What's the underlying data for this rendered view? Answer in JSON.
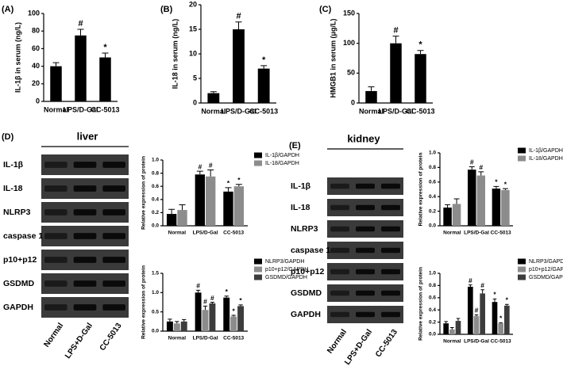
{
  "chart_data": [
    {
      "type": "bar",
      "panel": "(A)",
      "ylabel": "IL-1β in serum (ng/L)",
      "categories": [
        "Normal",
        "LPS/D-Gal",
        "CC-5013"
      ],
      "values": [
        40,
        75,
        50
      ],
      "errors": [
        4,
        7,
        5
      ],
      "color": "#000000",
      "ylim": [
        0,
        100
      ],
      "yticks": [
        0,
        20,
        40,
        60,
        80,
        100
      ],
      "annotations": [
        {
          "text": "#",
          "x": "LPS/D-Gal"
        },
        {
          "text": "*",
          "x": "CC-5013"
        }
      ]
    },
    {
      "type": "bar",
      "panel": "(B)",
      "ylabel": "IL-18 in serum (ng/L)",
      "categories": [
        "Normal",
        "LPS/D-Gal",
        "CC-5013"
      ],
      "values": [
        2,
        15,
        7
      ],
      "errors": [
        0.3,
        1.5,
        0.6
      ],
      "color": "#000000",
      "ylim": [
        0,
        20
      ],
      "yticks": [
        0,
        5,
        10,
        15,
        20
      ],
      "annotations": [
        {
          "text": "#",
          "x": "LPS/D-Gal"
        },
        {
          "text": "*",
          "x": "CC-5013"
        }
      ]
    },
    {
      "type": "bar",
      "panel": "(C)",
      "ylabel": "HMGB1 in serum (μg/L)",
      "categories": [
        "Normal",
        "LPS/D-Gal",
        "CC-5013"
      ],
      "values": [
        20,
        100,
        82
      ],
      "errors": [
        7,
        12,
        6
      ],
      "color": "#000000",
      "ylim": [
        0,
        150
      ],
      "yticks": [
        0,
        50,
        100,
        150
      ],
      "annotations": [
        {
          "text": "#",
          "x": "LPS/D-Gal"
        },
        {
          "text": "*",
          "x": "CC-5013"
        }
      ]
    },
    {
      "type": "grouped_bar",
      "ylabel": "Relative expression of protein",
      "categories": [
        "Normal",
        "LPS/D-Gal",
        "CC-5013"
      ],
      "series": [
        {
          "name": "IL-1β/GAPDH",
          "color": "#000000",
          "values": [
            0.18,
            0.78,
            0.52
          ],
          "errors": [
            0.07,
            0.05,
            0.06
          ]
        },
        {
          "name": "IL-18/GAPDH",
          "color": "#8c8c8c",
          "values": [
            0.24,
            0.75,
            0.6
          ],
          "errors": [
            0.08,
            0.1,
            0.03
          ]
        }
      ],
      "ylim": [
        0,
        1
      ],
      "yticks": [
        {
          "value": 0,
          "label": "0.0"
        },
        0.2,
        0.4,
        0.6,
        0.8,
        {
          "value": 1,
          "label": "1.0"
        }
      ],
      "annotations": [
        {
          "text": "#",
          "x": "LPS/D-Gal",
          "series": "IL-1β/GAPDH"
        },
        {
          "text": "#",
          "x": "LPS/D-Gal",
          "series": "IL-18/GAPDH"
        },
        {
          "text": "*",
          "x": "CC-5013",
          "series": "IL-1β/GAPDH"
        },
        {
          "text": "*",
          "x": "CC-5013",
          "series": "IL-18/GAPDH"
        }
      ]
    },
    {
      "type": "grouped_bar",
      "ylabel": "Relative expression of protein",
      "categories": [
        "Normal",
        "LPS/D-Gal",
        "CC-5013"
      ],
      "series": [
        {
          "name": "NLRP3/GAPDH",
          "color": "#000000",
          "values": [
            0.25,
            1.0,
            0.87
          ],
          "errors": [
            0.06,
            0.06,
            0.04
          ]
        },
        {
          "name": "p10+p12/GAPDH",
          "color": "#8c8c8c",
          "values": [
            0.2,
            0.55,
            0.38
          ],
          "errors": [
            0.05,
            0.1,
            0.03
          ]
        },
        {
          "name": "GSDMD/GAPDH",
          "color": "#3c3c3c",
          "values": [
            0.25,
            0.72,
            0.65
          ],
          "errors": [
            0.05,
            0.03,
            0.03
          ]
        }
      ],
      "ylim": [
        0,
        1.5
      ],
      "yticks": [
        {
          "value": 0,
          "label": "0.0"
        },
        0.5,
        {
          "value": 1,
          "label": "1.0"
        },
        1.5
      ],
      "annotations": [
        {
          "text": "#",
          "x": "LPS/D-Gal",
          "series": "NLRP3/GAPDH"
        },
        {
          "text": "#",
          "x": "LPS/D-Gal",
          "series": "p10+p12/GAPDH"
        },
        {
          "text": "#",
          "x": "LPS/D-Gal",
          "series": "GSDMD/GAPDH"
        },
        {
          "text": "*",
          "x": "CC-5013",
          "series": "NLRP3/GAPDH"
        },
        {
          "text": "*",
          "x": "CC-5013",
          "series": "p10+p12/GAPDH"
        },
        {
          "text": "*",
          "x": "CC-5013",
          "series": "GSDMD/GAPDH"
        }
      ]
    },
    {
      "type": "grouped_bar",
      "ylabel": "Relative expression of protein",
      "categories": [
        "Normal",
        "LPS/D-Gal",
        "CC-5013"
      ],
      "series": [
        {
          "name": "IL-1β/GAPDH",
          "color": "#000000",
          "values": [
            0.25,
            0.77,
            0.51
          ],
          "errors": [
            0.04,
            0.04,
            0.03
          ]
        },
        {
          "name": "IL-18/GAPDH",
          "color": "#8c8c8c",
          "values": [
            0.3,
            0.69,
            0.49
          ],
          "errors": [
            0.07,
            0.05,
            0.02
          ]
        }
      ],
      "ylim": [
        0,
        1
      ],
      "yticks": [
        {
          "value": 0,
          "label": "0.0"
        },
        0.2,
        0.4,
        0.6,
        0.8,
        {
          "value": 1,
          "label": "1.0"
        }
      ],
      "annotations": [
        {
          "text": "#",
          "x": "LPS/D-Gal",
          "series": "IL-1β/GAPDH"
        },
        {
          "text": "#",
          "x": "LPS/D-Gal",
          "series": "IL-18/GAPDH"
        },
        {
          "text": "*",
          "x": "CC-5013",
          "series": "IL-1β/GAPDH"
        },
        {
          "text": "*",
          "x": "CC-5013",
          "series": "IL-18/GAPDH"
        }
      ]
    },
    {
      "type": "grouped_bar",
      "ylabel": "Relative expression of protein",
      "categories": [
        "Normal",
        "LPS/D-Gal",
        "CC-5013"
      ],
      "series": [
        {
          "name": "NLRP3/GAPDH",
          "color": "#000000",
          "values": [
            0.18,
            0.78,
            0.53
          ],
          "errors": [
            0.03,
            0.03,
            0.05
          ]
        },
        {
          "name": "p10+p12/GAPDH",
          "color": "#8c8c8c",
          "values": [
            0.08,
            0.3,
            0.18
          ],
          "errors": [
            0.03,
            0.02,
            0.01
          ]
        },
        {
          "name": "GSDMD/GAPDH",
          "color": "#3c3c3c",
          "values": [
            0.22,
            0.67,
            0.47
          ],
          "errors": [
            0.04,
            0.06,
            0.02
          ]
        }
      ],
      "ylim": [
        0,
        1
      ],
      "yticks": [
        {
          "value": 0,
          "label": "0.0"
        },
        0.2,
        0.4,
        0.6,
        0.8,
        {
          "value": 1,
          "label": "1.0"
        }
      ],
      "annotations": [
        {
          "text": "#",
          "x": "LPS/D-Gal",
          "series": "NLRP3/GAPDH"
        },
        {
          "text": "#",
          "x": "LPS/D-Gal",
          "series": "p10+p12/GAPDH"
        },
        {
          "text": "#",
          "x": "LPS/D-Gal",
          "series": "GSDMD/GAPDH"
        },
        {
          "text": "*",
          "x": "CC-5013",
          "series": "NLRP3/GAPDH"
        },
        {
          "text": "*",
          "x": "CC-5013",
          "series": "p10+p12/GAPDH"
        },
        {
          "text": "*",
          "x": "CC-5013",
          "series": "GSDMD/GAPDH"
        }
      ]
    }
  ],
  "blots": [
    {
      "panel": "(D)",
      "title": "liver",
      "rows": [
        "IL-1β",
        "IL-18",
        "NLRP3",
        "caspase 1",
        "p10+p12",
        "GSDMD",
        "GAPDH"
      ],
      "lanes": [
        "Normal",
        "LPS+D-Gal",
        "CC-5013"
      ]
    },
    {
      "panel": "(E)",
      "title": "kidney",
      "rows": [
        "IL-1β",
        "IL-18",
        "NLRP3",
        "caspase 1",
        "p10+p12",
        "GSDMD",
        "GAPDH"
      ],
      "lanes": [
        "Normal",
        "LPS+D-Gal",
        "CC-5013"
      ]
    }
  ]
}
